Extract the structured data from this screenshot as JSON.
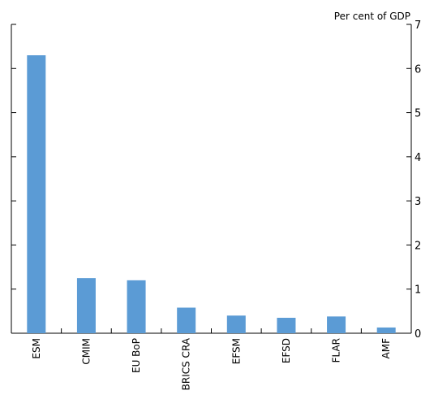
{
  "chart_data": {
    "type": "bar",
    "title": "",
    "xlabel": "",
    "ylabel": "",
    "unit_label": "Per cent of GDP",
    "categories": [
      "ESM",
      "CMIM",
      "EU BoP",
      "BRICS CRA",
      "EFSM",
      "EFSD",
      "FLAR",
      "AMF"
    ],
    "values": [
      6.3,
      1.25,
      1.2,
      0.58,
      0.4,
      0.35,
      0.38,
      0.13
    ],
    "ylim": [
      0,
      7
    ],
    "yticks": [
      0,
      1,
      2,
      3,
      4,
      5,
      6,
      7
    ],
    "grid": false,
    "legend": "none",
    "bar_color": "#5b9bd5"
  }
}
